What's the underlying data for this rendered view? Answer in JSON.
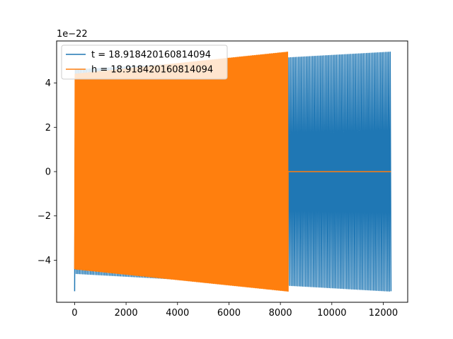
{
  "chart_data": {
    "type": "line",
    "title": "",
    "xlabel": "",
    "ylabel": "",
    "y_offset_label": "1e−22",
    "xlim": [
      -700,
      12950
    ],
    "ylim": [
      -5.9,
      5.9
    ],
    "x_ticks": [
      0,
      2000,
      4000,
      6000,
      8000,
      10000,
      12000
    ],
    "x_tick_labels": [
      "0",
      "2000",
      "4000",
      "6000",
      "8000",
      "10000",
      "12000"
    ],
    "y_ticks": [
      -4,
      -2,
      0,
      2,
      4
    ],
    "y_tick_labels": [
      "−4",
      "−2",
      "0",
      "2",
      "4"
    ],
    "legend_position": "upper-left",
    "grid": false,
    "series": [
      {
        "name": "t = 18.918420160814094",
        "color": "#1f77b4",
        "x_range": [
          0,
          12300
        ],
        "envelope_start": 4.6,
        "envelope_end": 5.4,
        "initial_peak": -5.4,
        "cycles": 200
      },
      {
        "name": "h = 18.918420160814094",
        "color": "#ff7f0e",
        "x_range": [
          0,
          8300
        ],
        "envelope_start": 4.4,
        "envelope_end": 5.4,
        "flat_after": [
          8300,
          12300
        ],
        "flat_value": 0,
        "cycles": 200
      }
    ]
  }
}
